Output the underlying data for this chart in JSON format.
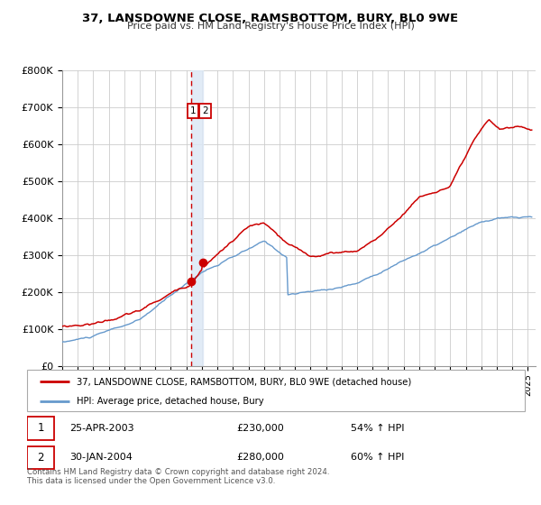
{
  "title": "37, LANSDOWNE CLOSE, RAMSBOTTOM, BURY, BL0 9WE",
  "subtitle": "Price paid vs. HM Land Registry's House Price Index (HPI)",
  "legend_entry1": "37, LANSDOWNE CLOSE, RAMSBOTTOM, BURY, BL0 9WE (detached house)",
  "legend_entry2": "HPI: Average price, detached house, Bury",
  "red_line_color": "#cc0000",
  "blue_line_color": "#6699cc",
  "dashed_line_color": "#cc0000",
  "shade_color": "#dce8f5",
  "ylim": [
    0,
    800000
  ],
  "yticks": [
    0,
    100000,
    200000,
    300000,
    400000,
    500000,
    600000,
    700000,
    800000
  ],
  "xlim_start": 1995.0,
  "xlim_end": 2025.5,
  "transaction1_date": 2003.31,
  "transaction1_price": 230000,
  "transaction1_label": "25-APR-2003",
  "transaction1_pct": "54% ↑ HPI",
  "transaction2_date": 2004.08,
  "transaction2_price": 280000,
  "transaction2_label": "30-JAN-2004",
  "transaction2_pct": "60% ↑ HPI",
  "footer1": "Contains HM Land Registry data © Crown copyright and database right 2024.",
  "footer2": "This data is licensed under the Open Government Licence v3.0.",
  "background_color": "#ffffff",
  "grid_color": "#cccccc"
}
